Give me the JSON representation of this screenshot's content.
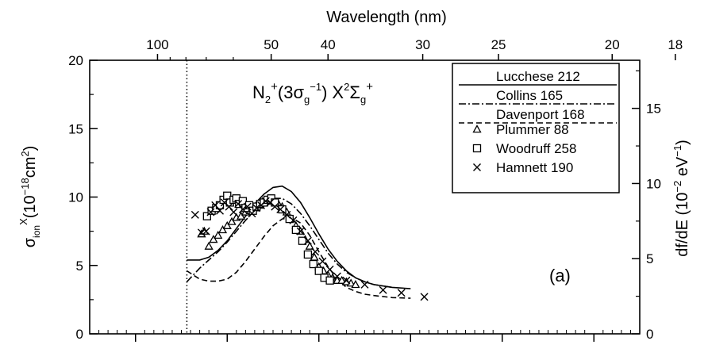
{
  "chart_data": {
    "type": "line",
    "title": "N₂⁺(3σg⁻¹) X²Σg⁺",
    "title_parts": {
      "species": "N",
      "species_sub": "2",
      "charge": "+",
      "orbital_open": "(3σ",
      "orbital_sub": "g",
      "orbital_exp": "−1",
      "orbital_close": ")",
      "state": "X",
      "state_sup": "2",
      "state_sym": "Σ",
      "state_sub": "g",
      "state_charge": "+"
    },
    "xlabel_top": "Wavelength (nm)",
    "x_top_ticks": [
      "100",
      "50",
      "40",
      "30",
      "25",
      "20",
      "18"
    ],
    "ylabel_left": {
      "main": "σ",
      "sub": "ion",
      "sup": "X",
      "unit": "(10",
      "unit_exp": "−18",
      "unit_tail": "cm",
      "unit_tail_exp": "2",
      "close": ")"
    },
    "ylabel_right": {
      "main": "df/dE (10",
      "exp": "−2",
      "tail": " eV",
      "tail_exp": "−1",
      "close": ")"
    },
    "ylim_left": [
      0,
      20
    ],
    "ylim_right": [
      0,
      18.2
    ],
    "left_ticks": [
      "0",
      "5",
      "10",
      "15",
      "20"
    ],
    "right_ticks": [
      "0",
      "5",
      "10",
      "15"
    ],
    "x_axis_photon_energy_eV": [
      5,
      65
    ],
    "bottom_tick_labels": "none",
    "threshold_eV": 15.6,
    "panel_label": "(a)",
    "legend_position": "top-right",
    "grid": false,
    "series": [
      {
        "name": "Lucchese 212",
        "style": "solid",
        "kind": "curve",
        "x": [
          15.6,
          17,
          18,
          19,
          20,
          21,
          22,
          23,
          24,
          25,
          26,
          27,
          28,
          29,
          30,
          31,
          32,
          33,
          34,
          35,
          36,
          38,
          40
        ],
        "y": [
          5.4,
          5.4,
          5.6,
          6.1,
          6.8,
          7.7,
          8.6,
          9.5,
          10.2,
          10.7,
          10.8,
          10.4,
          9.6,
          8.5,
          7.3,
          6.2,
          5.3,
          4.6,
          4.1,
          3.8,
          3.6,
          3.4,
          3.3
        ]
      },
      {
        "name": "Collins 165",
        "style": "dashdot",
        "kind": "curve",
        "x": [
          15.6,
          17,
          18,
          19,
          20,
          21,
          22,
          23,
          24,
          25,
          26,
          27,
          28,
          29,
          30,
          31,
          32,
          33,
          34,
          35,
          36,
          38
        ],
        "y": [
          3.8,
          4.8,
          5.4,
          6.0,
          6.7,
          7.5,
          8.3,
          9.0,
          9.6,
          9.9,
          9.9,
          9.5,
          8.8,
          7.9,
          6.9,
          5.9,
          5.1,
          4.5,
          4.1,
          3.8,
          3.6,
          3.4
        ]
      },
      {
        "name": "Davenport 168",
        "style": "dashed",
        "kind": "curve",
        "x": [
          15.6,
          17,
          18,
          19,
          20,
          21,
          22,
          23,
          24,
          25,
          26,
          27,
          28,
          29,
          30,
          31,
          32,
          33,
          34,
          35,
          36,
          38,
          40
        ],
        "y": [
          4.6,
          4.0,
          3.85,
          3.85,
          4.0,
          4.5,
          5.3,
          6.2,
          7.1,
          7.9,
          8.4,
          8.5,
          8.1,
          7.2,
          6.0,
          4.9,
          4.0,
          3.4,
          3.1,
          2.9,
          2.8,
          2.65,
          2.6
        ]
      },
      {
        "name": "Plummer 88",
        "style": "triangle",
        "kind": "points",
        "x": [
          17.2,
          17.5,
          18,
          18.5,
          19,
          19.5,
          20,
          20.5,
          21,
          21.5,
          22,
          22.5,
          23,
          23.5,
          24,
          24.5,
          25,
          25.5,
          26,
          26.5,
          27,
          27.5,
          28,
          28.5,
          29,
          29.5,
          30,
          30.5,
          31,
          31.5,
          32,
          32.5,
          33,
          33.5,
          34
        ],
        "y": [
          7.3,
          7.5,
          6.4,
          6.9,
          7.2,
          7.6,
          7.9,
          8.2,
          8.5,
          8.6,
          8.9,
          9.0,
          9.2,
          9.4,
          9.6,
          9.7,
          9.7,
          9.6,
          9.3,
          8.9,
          8.4,
          7.9,
          7.5,
          6.9,
          6.4,
          5.6,
          4.9,
          4.6,
          4.3,
          4.1,
          3.9,
          3.9,
          3.8,
          3.7,
          3.6
        ]
      },
      {
        "name": "Woodruff 258",
        "style": "square",
        "kind": "points",
        "x": [
          17.8,
          18.3,
          18.8,
          19.2,
          19.6,
          20,
          20.3,
          20.7,
          21,
          21.3,
          21.7,
          22,
          22.4,
          22.8,
          23.2,
          23.6,
          24,
          24.4,
          24.8,
          25.2,
          26,
          26.8,
          27.5,
          28.2,
          28.8,
          29.4,
          30,
          30.6,
          31.2
        ],
        "y": [
          8.6,
          9.0,
          9.2,
          9.4,
          9.8,
          10.1,
          9.6,
          9.8,
          9.9,
          9.5,
          9.7,
          9.2,
          9.4,
          9.0,
          9.3,
          9.5,
          9.6,
          9.8,
          9.9,
          9.6,
          9.1,
          8.4,
          7.6,
          6.8,
          5.8,
          5.1,
          4.6,
          4.1,
          3.9
        ]
      },
      {
        "name": "Hamnett 190",
        "style": "cross",
        "kind": "points",
        "x": [
          16.5,
          17.2,
          17.7,
          18.2,
          18.7,
          19.2,
          19.7,
          20.2,
          20.7,
          21.2,
          21.7,
          22.2,
          22.7,
          23.2,
          23.7,
          24.2,
          24.7,
          25.2,
          25.8,
          26.5,
          27.2,
          28,
          28.8,
          29.6,
          30.4,
          31.2,
          32,
          33,
          35,
          37,
          39,
          41.5
        ],
        "y": [
          8.7,
          7.4,
          7.5,
          8.9,
          9.4,
          9.0,
          9.6,
          9.3,
          8.9,
          9.5,
          9.1,
          9.3,
          8.8,
          9.2,
          9.4,
          9.7,
          9.6,
          9.3,
          9.1,
          8.7,
          8.3,
          7.5,
          6.8,
          6.0,
          5.3,
          4.7,
          4.2,
          3.9,
          3.6,
          3.2,
          3.0,
          2.7
        ]
      }
    ]
  }
}
